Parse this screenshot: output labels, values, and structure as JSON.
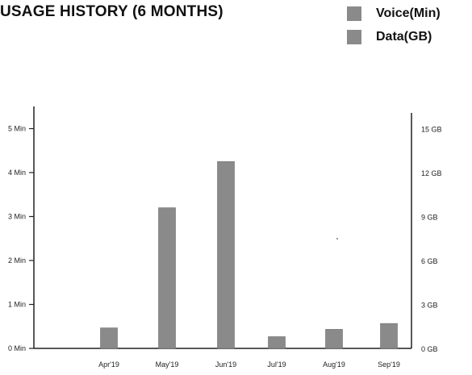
{
  "chart_data": {
    "type": "bar",
    "title": "USAGE HISTORY (6 MONTHS)",
    "categories": [
      "Apr'19",
      "May'19",
      "Jun'19",
      "Jul'19",
      "Aug'19",
      "Sep'19"
    ],
    "series": [
      {
        "name": "Voice(Min)",
        "axis": "left",
        "values": [
          0,
          3.2,
          4.25,
          0,
          0,
          0
        ]
      },
      {
        "name": "Data(GB)",
        "axis": "right",
        "values": [
          1.4,
          0,
          0,
          0.8,
          1.3,
          1.7
        ]
      }
    ],
    "ylabel": "",
    "y_left": {
      "ticks": [
        "0 Min",
        "1 Min",
        "2 Min",
        "3 Min",
        "4 Min",
        "5 Min"
      ],
      "values": [
        0,
        1,
        2,
        3,
        4,
        5
      ],
      "ylim": [
        0,
        5.5
      ]
    },
    "y_right": {
      "ticks": [
        "0 GB",
        "3 GB",
        "6 GB",
        "9 GB",
        "12 GB",
        "15 GB"
      ],
      "values": [
        0,
        3,
        6,
        9,
        12,
        15
      ],
      "ylim": [
        0,
        16.5
      ]
    },
    "legend": {
      "placement": "top-right",
      "entries": [
        "Voice(Min)",
        "Data(GB)"
      ]
    },
    "grid": false,
    "colors": {
      "bar": "#8a8a8a",
      "axis": "#222222"
    }
  }
}
